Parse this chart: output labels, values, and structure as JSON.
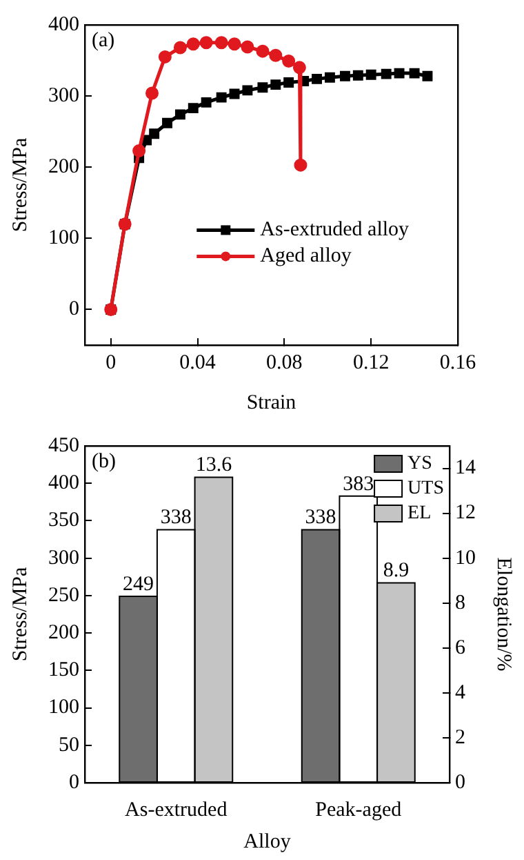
{
  "chart_data": [
    {
      "type": "line",
      "title": "(a)",
      "xlabel": "Strain",
      "ylabel": "Stress/MPa",
      "xlim": [
        -0.012,
        0.16
      ],
      "xticks": [
        0,
        0.04,
        0.08,
        0.12,
        0.16
      ],
      "ylim": [
        -50,
        400
      ],
      "yticks": [
        0,
        100,
        200,
        300,
        400
      ],
      "grid": false,
      "legend": "center",
      "series": [
        {
          "name": "As-extruded alloy",
          "color": "#000000",
          "marker": "square",
          "x": [
            0,
            0.0065,
            0.013,
            0.0165,
            0.02,
            0.026,
            0.032,
            0.038,
            0.044,
            0.051,
            0.057,
            0.063,
            0.07,
            0.076,
            0.082,
            0.089,
            0.095,
            0.101,
            0.108,
            0.114,
            0.12,
            0.127,
            0.133,
            0.14,
            0.146
          ],
          "values": [
            0,
            120,
            213,
            238,
            247,
            262,
            274,
            283,
            291,
            298,
            303,
            308,
            312,
            316,
            319,
            321,
            324,
            326,
            328,
            329,
            330,
            331,
            332,
            332,
            328
          ]
        },
        {
          "name": "Aged alloy",
          "color": "#e0191f",
          "marker": "circle",
          "x": [
            0,
            0.0065,
            0.013,
            0.019,
            0.025,
            0.032,
            0.038,
            0.044,
            0.051,
            0.057,
            0.063,
            0.07,
            0.076,
            0.082,
            0.087,
            0.0875
          ],
          "values": [
            0,
            120,
            223,
            304,
            355,
            368,
            373,
            375,
            375,
            373,
            369,
            363,
            357,
            349,
            340,
            203
          ]
        }
      ]
    },
    {
      "type": "bar",
      "title": "(b)",
      "xlabel": "Alloy",
      "ylabel": "Stress/MPa",
      "y2label": "Elongation/%",
      "categories": [
        "As-extruded",
        "Peak-aged"
      ],
      "ylim": [
        0,
        450
      ],
      "yticks": [
        0,
        50,
        100,
        150,
        200,
        250,
        300,
        350,
        400,
        450
      ],
      "y2lim": [
        0,
        15
      ],
      "y2ticks": [
        0,
        2,
        4,
        6,
        8,
        10,
        12,
        14
      ],
      "grid": false,
      "legend": "top right",
      "data_labels": true,
      "series": [
        {
          "name": "YS",
          "color": "#6e6e6e",
          "values": [
            249,
            338
          ]
        },
        {
          "name": "UTS",
          "color": "#ffffff",
          "values": [
            338,
            383
          ]
        },
        {
          "name": "EL",
          "color": "#c4c4c4",
          "axis": "y2",
          "values": [
            13.6,
            8.9
          ]
        }
      ]
    }
  ]
}
